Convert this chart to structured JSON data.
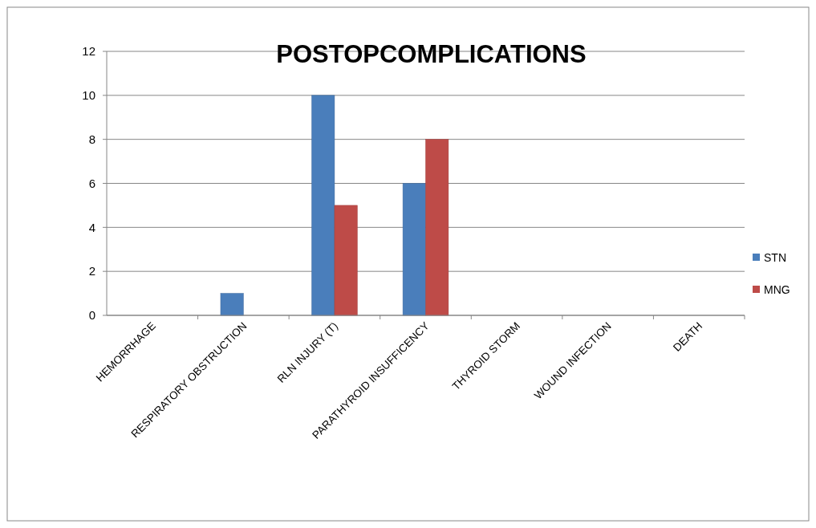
{
  "chart_data": {
    "type": "bar",
    "title": "POSTOPCOMPLICATIONS",
    "categories": [
      "HEMORRHAGE",
      "RESPIRATORY OBSTRUCTION",
      "RLN INJURY (T)",
      "PARATHYROID INSUFFICENCY",
      "THYROID STORM",
      "WOUND INFECTION",
      "DEATH"
    ],
    "series": [
      {
        "name": "STN",
        "color": "#4a7ebb",
        "values": [
          0,
          1,
          10,
          6,
          0,
          0,
          0
        ]
      },
      {
        "name": "MNG",
        "color": "#be4b48",
        "values": [
          0,
          0,
          5,
          8,
          0,
          0,
          0
        ]
      }
    ],
    "ylim": [
      0,
      12
    ],
    "yticks": [
      0,
      2,
      4,
      6,
      8,
      10,
      12
    ],
    "grid": "y",
    "legend": "right"
  }
}
